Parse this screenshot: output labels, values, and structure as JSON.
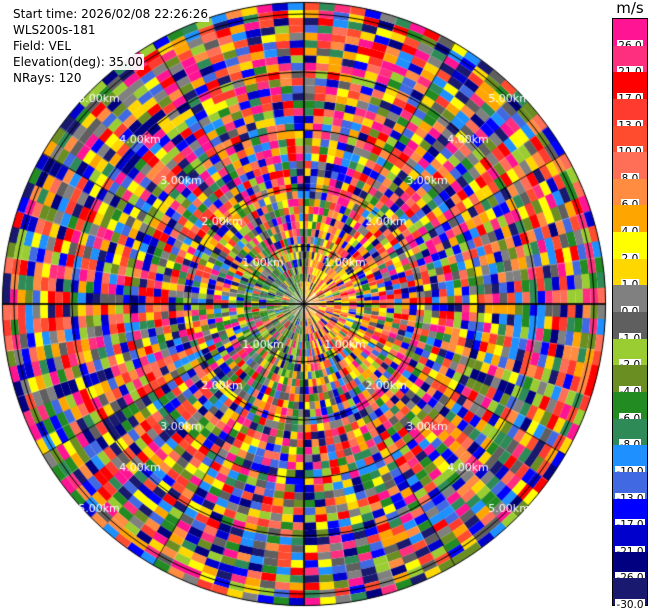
{
  "header": {
    "start_time": "Start time: 2026/02/08 22:26:26",
    "instrument": "WLS200s-181",
    "field": "Field: VEL",
    "elevation": "Elevation(deg): 35.00",
    "nrays": "NRays: 120"
  },
  "chart_data": {
    "type": "heatmap",
    "projection": "polar PPI",
    "range_ring_labels": [
      "1.00km",
      "2.00km",
      "3.00km",
      "4.00km",
      "5.00km"
    ],
    "ray_count": 120,
    "gates_per_ray": 40,
    "max_range_km": 5.2,
    "colorbar": {
      "unit": "m/s",
      "levels": [
        26.0,
        21.0,
        17.0,
        13.0,
        10.0,
        8.0,
        6.0,
        4.0,
        2.0,
        1.0,
        0.0,
        -1.0,
        -2.0,
        -4.0,
        -6.0,
        -8.0,
        -10.0,
        -13.0,
        -17.0,
        -21.0,
        -26.0,
        -30.0
      ],
      "tick_labels": [
        "26.0",
        "21.0",
        "17.0",
        "13.0",
        "10.0",
        "8.0",
        "6.0",
        "4.0",
        "2.0",
        "1.0",
        "0.0",
        "-1.0",
        "-2.0",
        "-4.0",
        "-6.0",
        "-8.0",
        "-10.0",
        "-13.0",
        "-17.0",
        "-21.0",
        "-26.0",
        "-30.0"
      ],
      "colors": [
        "#ff1493",
        "#ff2f7f",
        "#ff0000",
        "#ff3b30",
        "#ff4c2f",
        "#ff6e56",
        "#ff8c40",
        "#ffa500",
        "#ffff00",
        "#ffd700",
        "#808080",
        "#5f5f5f",
        "#9acd32",
        "#6b8e23",
        "#228b22",
        "#2e8b57",
        "#1e90ff",
        "#4169e1",
        "#0000ff",
        "#0000cd",
        "#000080",
        "#191970"
      ]
    },
    "pattern": "near-field: positive (orange/yellow) to the east, negative (green) to the west; far-field: noisy random colors"
  }
}
